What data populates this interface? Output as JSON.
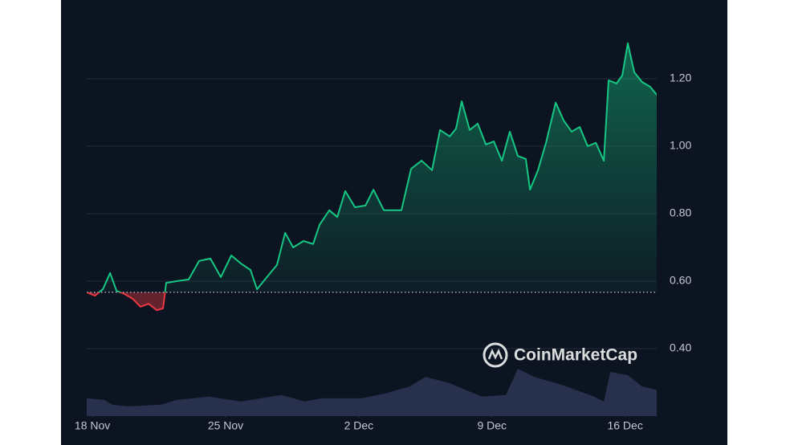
{
  "chart_data": [
    {
      "type": "line",
      "title_watermark": "CoinMarketCap",
      "x": [
        -0.3,
        0.13,
        0.55,
        0.93,
        1.27,
        1.69,
        2.11,
        2.53,
        2.95,
        3.38,
        3.71,
        3.88,
        4.43,
        5.06,
        5.61,
        6.2,
        6.75,
        7.3,
        7.81,
        8.31,
        8.65,
        9.07,
        9.7,
        10.13,
        10.55,
        11.1,
        11.6,
        11.94,
        12.45,
        12.87,
        13.29,
        13.8,
        14.35,
        14.77,
        15.32,
        15.82,
        16.24,
        16.75,
        17.3,
        17.85,
        18.27,
        18.78,
        19.11,
        19.41,
        19.83,
        20.25,
        20.68,
        21.1,
        21.52,
        21.94,
        22.36,
        22.78,
        23.0,
        23.42,
        23.84,
        24.35,
        24.77,
        25.19,
        25.61,
        26.03,
        26.46,
        26.88,
        27.13,
        27.55,
        27.85,
        28.14,
        28.48,
        28.9,
        29.32,
        29.66
      ],
      "values": [
        0.567,
        0.557,
        0.576,
        0.624,
        0.571,
        0.562,
        0.548,
        0.524,
        0.533,
        0.514,
        0.519,
        0.595,
        0.6,
        0.605,
        0.66,
        0.667,
        0.612,
        0.676,
        0.652,
        0.633,
        0.576,
        0.605,
        0.648,
        0.743,
        0.7,
        0.719,
        0.71,
        0.767,
        0.81,
        0.79,
        0.867,
        0.819,
        0.824,
        0.871,
        0.81,
        0.81,
        0.81,
        0.933,
        0.957,
        0.929,
        1.048,
        1.029,
        1.052,
        1.133,
        1.048,
        1.067,
        1.005,
        1.014,
        0.957,
        1.043,
        0.971,
        0.962,
        0.871,
        0.929,
        1.01,
        1.129,
        1.076,
        1.043,
        1.057,
        1.0,
        1.01,
        0.957,
        1.195,
        1.186,
        1.21,
        1.305,
        1.219,
        1.19,
        1.176,
        1.152
      ],
      "baseline": 0.567,
      "up_color": "#16c784",
      "down_color": "#ea3943",
      "xlim": [
        -0.3,
        29.66
      ],
      "xticks": [
        {
          "value": 0,
          "label": "18 Nov"
        },
        {
          "value": 7,
          "label": "25 Nov"
        },
        {
          "value": 14,
          "label": "2 Dec"
        },
        {
          "value": 21,
          "label": "9 Dec"
        },
        {
          "value": 28,
          "label": "16 Dec"
        }
      ],
      "ylim": [
        0.2,
        1.4
      ],
      "yticks": [
        {
          "value": 0.4,
          "label": "0.40"
        },
        {
          "value": 0.6,
          "label": "0.60"
        },
        {
          "value": 0.8,
          "label": "0.80"
        },
        {
          "value": 1.0,
          "label": "1.00"
        },
        {
          "value": 1.2,
          "label": "1.20"
        }
      ],
      "grid": true
    },
    {
      "type": "area",
      "x": [
        -0.3,
        0.63,
        1.05,
        1.9,
        3.59,
        4.43,
        6.12,
        7.81,
        9.92,
        11.18,
        12.03,
        14.14,
        15.4,
        16.67,
        17.51,
        18.78,
        20.46,
        21.73,
        22.36,
        23.21,
        24.68,
        26.37,
        26.88,
        27.22,
        28.14,
        28.9,
        29.66
      ],
      "values": [
        4.4,
        4.0,
        2.8,
        2.4,
        2.8,
        4.0,
        4.8,
        3.6,
        5.2,
        3.6,
        4.4,
        4.4,
        5.6,
        7.3,
        9.7,
        8.1,
        4.8,
        5.2,
        11.7,
        9.7,
        7.7,
        4.8,
        3.6,
        10.9,
        10.1,
        7.3,
        6.5
      ],
      "color": "#2a3352",
      "xlim": [
        -0.3,
        29.66
      ],
      "ylim": [
        0,
        100
      ]
    }
  ]
}
